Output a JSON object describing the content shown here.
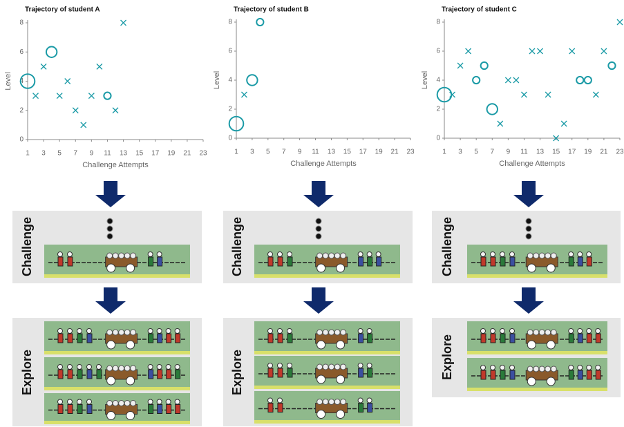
{
  "chart_data": [
    {
      "type": "scatter",
      "title": "Trajectory of student A",
      "xlabel": "Challenge Attempts",
      "ylabel": "Level",
      "xlim": [
        1,
        23
      ],
      "xticks": [
        1,
        3,
        5,
        7,
        9,
        11,
        13,
        15,
        17,
        19,
        21,
        23
      ],
      "ylim": [
        0,
        8
      ],
      "yticks": [
        0,
        2,
        4,
        6,
        8
      ],
      "series": [
        {
          "marker": "x",
          "color": "#1a9aa6",
          "x": [
            2,
            3,
            5,
            6,
            7,
            8,
            9,
            10,
            12,
            13
          ],
          "values": [
            3,
            5,
            3,
            4,
            2,
            1,
            3,
            5,
            2,
            8
          ]
        },
        {
          "marker": "circle",
          "color": "#1a9aa6",
          "x": [
            1,
            4,
            11
          ],
          "values": [
            4,
            6,
            3
          ],
          "sizes": [
            3,
            2,
            1
          ]
        }
      ]
    },
    {
      "type": "scatter",
      "title": "Trajectory of student B",
      "xlabel": "Challenge Attempts",
      "ylabel": "Level",
      "xlim": [
        1,
        23
      ],
      "xticks": [
        1,
        3,
        5,
        7,
        9,
        11,
        13,
        15,
        17,
        19,
        21,
        23
      ],
      "ylim": [
        0,
        8
      ],
      "yticks": [
        0,
        2,
        4,
        6,
        8
      ],
      "series": [
        {
          "marker": "x",
          "color": "#1a9aa6",
          "x": [
            2
          ],
          "values": [
            3
          ]
        },
        {
          "marker": "circle",
          "color": "#1a9aa6",
          "x": [
            1,
            3,
            4
          ],
          "values": [
            1,
            4,
            8
          ],
          "sizes": [
            3,
            2,
            1
          ]
        }
      ]
    },
    {
      "type": "scatter",
      "title": "Trajectory of student C",
      "xlabel": "Challenge Attempts",
      "ylabel": "Level",
      "xlim": [
        1,
        23
      ],
      "xticks": [
        1,
        3,
        5,
        7,
        9,
        11,
        13,
        15,
        17,
        19,
        21,
        23
      ],
      "ylim": [
        0,
        8
      ],
      "yticks": [
        0,
        2,
        4,
        6,
        8
      ],
      "series": [
        {
          "marker": "x",
          "color": "#1a9aa6",
          "x": [
            2,
            3,
            4,
            8,
            9,
            10,
            11,
            12,
            13,
            14,
            15,
            16,
            17,
            20,
            21,
            23
          ],
          "values": [
            3,
            5,
            6,
            1,
            4,
            4,
            3,
            6,
            6,
            3,
            0,
            1,
            6,
            3,
            6,
            8
          ]
        },
        {
          "marker": "circle",
          "color": "#1a9aa6",
          "x": [
            1,
            5,
            6,
            7,
            18,
            19,
            22
          ],
          "values": [
            3,
            4,
            5,
            2,
            4,
            4,
            5
          ],
          "sizes": [
            3,
            1,
            1,
            2,
            1,
            1,
            1
          ]
        }
      ]
    }
  ],
  "panel_labels": {
    "challenge": "Challenge",
    "explore": "Explore"
  }
}
